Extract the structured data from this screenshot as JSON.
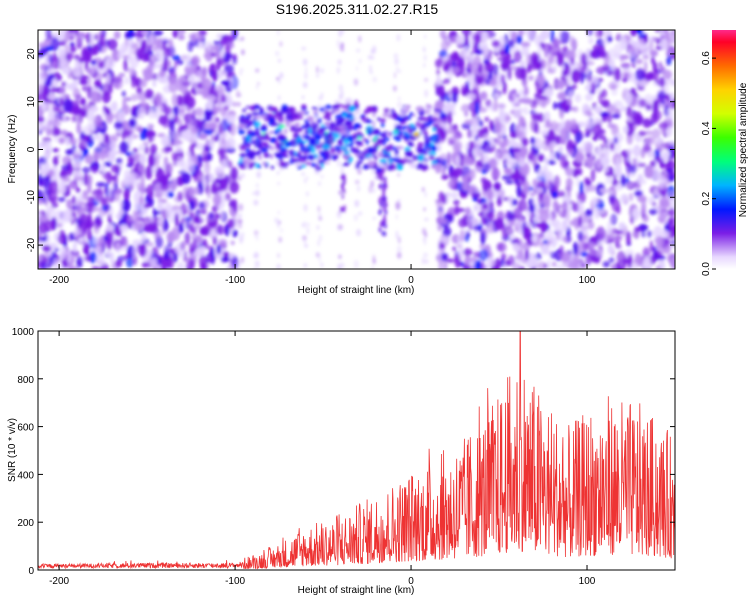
{
  "title": "S196.2025.311.02.27.R15",
  "chart_data": [
    {
      "type": "heatmap",
      "xlabel": "Height of straight line (km)",
      "ylabel": "Frequency (Hz)",
      "xlim": [
        -212,
        150
      ],
      "ylim": [
        -25,
        25
      ],
      "xticks": [
        -200,
        -100,
        0,
        100
      ],
      "yticks": [
        -20,
        -10,
        0,
        10,
        20
      ],
      "colorbar": {
        "label": "Normalized spectral amplitude",
        "range": [
          0.0,
          0.68
        ],
        "ticks": [
          0.0,
          0.2,
          0.4,
          0.6
        ],
        "tick_labels": [
          "0.0",
          "0.2",
          "0.4",
          "0.6"
        ],
        "colormap": "rainbow (white → violet → blue → cyan → green → yellow → orange → red)"
      },
      "features": [
        {
          "x_range": [
            -212,
            -100
          ],
          "y_range": [
            -25,
            25
          ],
          "level": 0.1
        },
        {
          "x_range": [
            -100,
            15
          ],
          "y_range": [
            -5,
            10
          ],
          "level": 0.3
        },
        {
          "x_range": [
            15,
            150
          ],
          "y_range": [
            -25,
            25
          ],
          "level": 0.12
        },
        {
          "x": 3,
          "y": 3,
          "level": 0.6
        }
      ]
    },
    {
      "type": "line",
      "xlabel": "Height of straight line (km)",
      "ylabel": "SNR (10 * v/v)",
      "xlim": [
        -212,
        150
      ],
      "ylim": [
        0,
        1000
      ],
      "xticks": [
        -200,
        -100,
        0,
        100
      ],
      "yticks": [
        0,
        200,
        400,
        600,
        800,
        1000
      ],
      "color": "#ee3333",
      "envelope": {
        "x": [
          -212,
          -150,
          -100,
          -80,
          -60,
          -40,
          -20,
          0,
          10,
          30,
          50,
          62,
          70,
          90,
          110,
          130,
          150
        ],
        "y": [
          30,
          40,
          40,
          100,
          200,
          250,
          350,
          450,
          500,
          600,
          800,
          1000,
          850,
          650,
          800,
          750,
          600
        ]
      }
    }
  ]
}
